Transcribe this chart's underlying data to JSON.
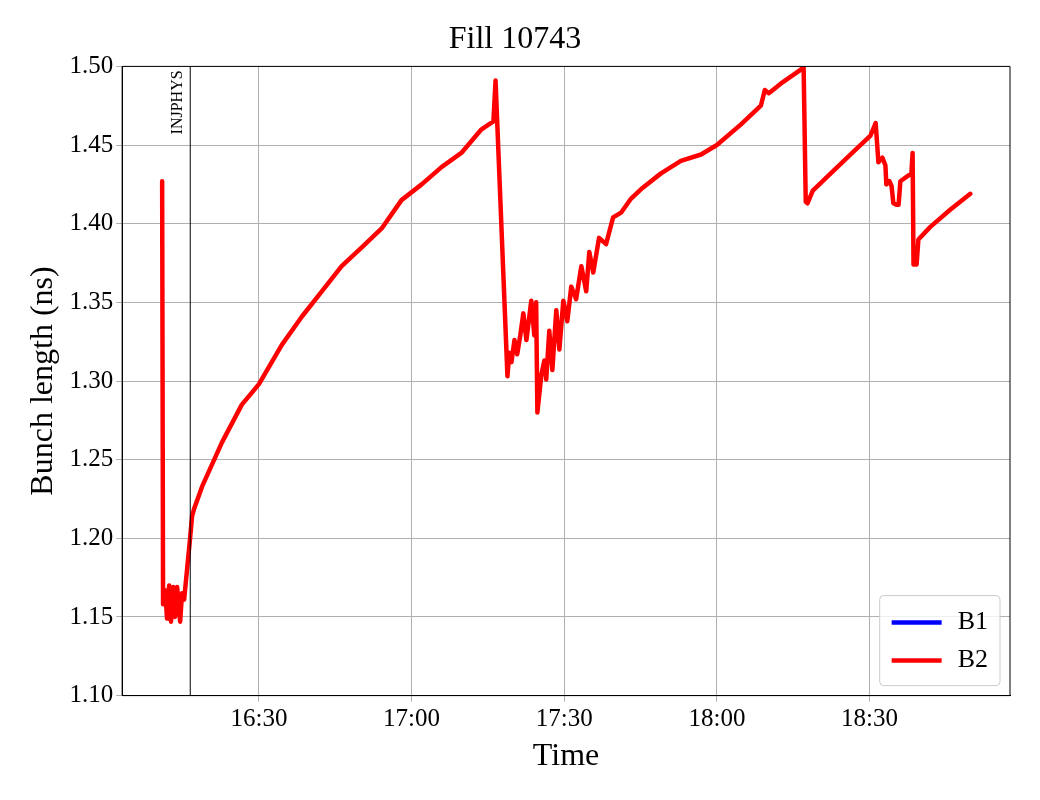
{
  "chart_data": {
    "type": "line",
    "title": "Fill 10743",
    "xlabel": "Time",
    "ylabel": "Bunch length (ns)",
    "xlim": [
      16.052,
      18.96
    ],
    "xticks": [
      {
        "value": 16.5,
        "label": "16:30"
      },
      {
        "value": 17,
        "label": "17:00"
      },
      {
        "value": 17.5,
        "label": "17:30"
      },
      {
        "value": 18,
        "label": "18:00"
      },
      {
        "value": 18.5,
        "label": "18:30"
      }
    ],
    "ylim": [
      1.1,
      1.5
    ],
    "yticks": [
      {
        "value": 1.1,
        "label": "1.10"
      },
      {
        "value": 1.15,
        "label": "1.15"
      },
      {
        "value": 1.2,
        "label": "1.20"
      },
      {
        "value": 1.25,
        "label": "1.25"
      },
      {
        "value": 1.3,
        "label": "1.30"
      },
      {
        "value": 1.35,
        "label": "1.35"
      },
      {
        "value": 1.4,
        "label": "1.40"
      },
      {
        "value": 1.45,
        "label": "1.45"
      },
      {
        "value": 1.5,
        "label": "1.50"
      }
    ],
    "grid": true,
    "legend": "bottom right",
    "marker": "none",
    "line_style": "solid",
    "ref_lines": [
      {
        "axis": "x",
        "value": 16.275,
        "label": "INJPHYS",
        "color": "#000000"
      }
    ],
    "series": [
      {
        "name": "B1",
        "color": "#0000ff"
      },
      {
        "name": "B2",
        "color": "#ff0000",
        "x": [
          16.183,
          16.186,
          16.193,
          16.199,
          16.206,
          16.212,
          16.219,
          16.225,
          16.232,
          16.242,
          16.248,
          16.255,
          16.275,
          16.281,
          16.288,
          16.314,
          16.379,
          16.444,
          16.5,
          16.575,
          16.641,
          16.706,
          16.771,
          16.837,
          16.902,
          16.967,
          17.033,
          17.098,
          17.163,
          17.229,
          17.268,
          17.275,
          17.314,
          17.32,
          17.327,
          17.337,
          17.346,
          17.356,
          17.366,
          17.376,
          17.392,
          17.402,
          17.408,
          17.412,
          17.425,
          17.435,
          17.441,
          17.451,
          17.461,
          17.474,
          17.484,
          17.497,
          17.51,
          17.523,
          17.539,
          17.556,
          17.572,
          17.582,
          17.595,
          17.614,
          17.637,
          17.66,
          17.686,
          17.719,
          17.752,
          17.817,
          17.882,
          17.948,
          18.0,
          18.078,
          18.144,
          18.157,
          18.17,
          18.209,
          18.275,
          18.284,
          18.291,
          18.297,
          18.314,
          18.373,
          18.438,
          18.503,
          18.52,
          18.529,
          18.542,
          18.552,
          18.555,
          18.565,
          18.572,
          18.578,
          18.588,
          18.595,
          18.601,
          18.637,
          18.641,
          18.644,
          18.654,
          18.66,
          18.699,
          18.765,
          18.83
        ],
        "values": [
          1.427,
          1.158,
          1.167,
          1.149,
          1.17,
          1.147,
          1.169,
          1.15,
          1.169,
          1.147,
          1.165,
          1.161,
          1.201,
          1.214,
          1.219,
          1.233,
          1.261,
          1.285,
          1.298,
          1.323,
          1.341,
          1.357,
          1.373,
          1.385,
          1.397,
          1.415,
          1.425,
          1.436,
          1.445,
          1.46,
          1.465,
          1.491,
          1.303,
          1.318,
          1.312,
          1.326,
          1.317,
          1.329,
          1.343,
          1.326,
          1.351,
          1.329,
          1.35,
          1.28,
          1.304,
          1.313,
          1.301,
          1.332,
          1.307,
          1.345,
          1.32,
          1.351,
          1.338,
          1.36,
          1.352,
          1.373,
          1.357,
          1.382,
          1.369,
          1.391,
          1.387,
          1.404,
          1.407,
          1.416,
          1.422,
          1.432,
          1.44,
          1.444,
          1.45,
          1.463,
          1.475,
          1.485,
          1.483,
          1.489,
          1.498,
          1.5,
          1.414,
          1.413,
          1.421,
          1.432,
          1.444,
          1.456,
          1.464,
          1.439,
          1.442,
          1.437,
          1.425,
          1.427,
          1.424,
          1.413,
          1.412,
          1.412,
          1.427,
          1.432,
          1.445,
          1.374,
          1.374,
          1.39,
          1.398,
          1.409,
          1.419
        ]
      }
    ]
  }
}
